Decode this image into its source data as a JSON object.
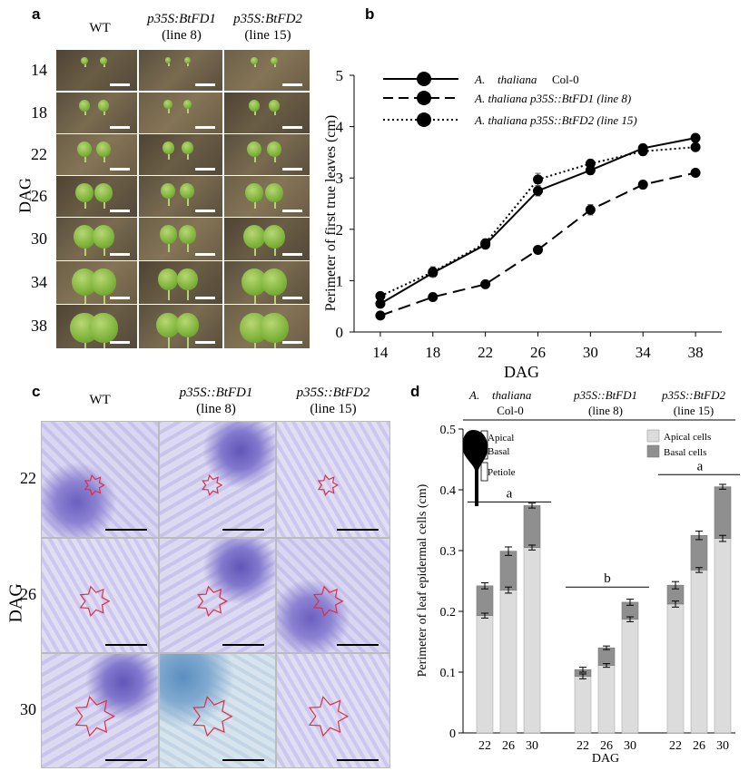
{
  "panel_a": {
    "letter": "a",
    "columns": [
      "WT",
      "p35S:BtFD1",
      "(line 8)",
      "p35S:BtFD2",
      "(line 15)"
    ],
    "col_wt": "WT",
    "col_fd1": "p35S:BtFD1",
    "col_fd1_line": "(line 8)",
    "col_fd2": "p35S:BtFD2",
    "col_fd2_line": "(line 15)",
    "row_label": "DAG",
    "rows": [
      "14",
      "18",
      "22",
      "26",
      "30",
      "34",
      "38"
    ]
  },
  "panel_b": {
    "letter": "b",
    "legend_1_a": "A.",
    "legend_1_b": "thaliana",
    "legend_1_c": "Col-0",
    "legend_2": "A. thaliana p35S::BtFD1 (line 8)",
    "legend_3": "A. thaliana p35S::BtFD2 (line 15)",
    "ylabel": "Perimeter of first true leaves (cm)",
    "xlabel": "DAG"
  },
  "panel_c": {
    "letter": "c",
    "col_wt": "WT",
    "col_fd1": "p35S::BtFD1",
    "col_fd1_line": "(line 8)",
    "col_fd2": "p35S::BtFD2",
    "col_fd2_line": "(line 15)",
    "row_label": "DAG",
    "rows": [
      "22",
      "26",
      "30"
    ]
  },
  "panel_d": {
    "letter": "d",
    "group1_a": "A.",
    "group1_b": "thaliana",
    "group1_c": "Col-0",
    "group2": "p35S::BtFD1",
    "group2_line": "(line 8)",
    "group3": "p35S::BtFD2",
    "group3_line": "(line 15)",
    "inset_apical": "Apical",
    "inset_basal": "Basal",
    "inset_petiole": "Petiole",
    "legend_apical": "Apical cells",
    "legend_basal": "Basal cells",
    "ylabel": "Perimeter of leaf epidermal cells (cm)",
    "xlabel": "DAG",
    "sig": [
      "a",
      "b",
      "a"
    ]
  },
  "chart_data": [
    {
      "type": "line",
      "panel": "b",
      "xlabel": "DAG",
      "ylabel": "Perimeter of first true leaves (cm)",
      "x": [
        14,
        18,
        22,
        26,
        30,
        34,
        38
      ],
      "xticks": [
        14,
        18,
        22,
        26,
        30,
        34,
        38
      ],
      "ylim": [
        0,
        5
      ],
      "yticks": [
        0,
        1,
        2,
        3,
        4,
        5
      ],
      "series": [
        {
          "name": "A. thaliana Col-0",
          "style": "solid",
          "values": [
            0.55,
            1.15,
            1.7,
            2.75,
            3.15,
            3.58,
            3.78
          ],
          "err": [
            0.04,
            0.05,
            0.05,
            0.1,
            0.08,
            0.07,
            0.05
          ]
        },
        {
          "name": "A. thaliana p35S::BtFD1 (line 8)",
          "style": "dashed",
          "values": [
            0.32,
            0.68,
            0.93,
            1.6,
            2.38,
            2.87,
            3.1
          ],
          "err": [
            0.03,
            0.04,
            0.04,
            0.05,
            0.1,
            0.07,
            0.05
          ]
        },
        {
          "name": "A. thaliana p35S::BtFD2 (line 15)",
          "style": "dotted",
          "values": [
            0.7,
            1.17,
            1.73,
            2.97,
            3.28,
            3.52,
            3.6
          ],
          "err": [
            0.04,
            0.1,
            0.05,
            0.12,
            0.07,
            0.08,
            0.06
          ]
        }
      ],
      "color": "#000000"
    },
    {
      "type": "bar",
      "panel": "d",
      "stacked": true,
      "xlabel": "DAG",
      "ylabel": "Perimeter of leaf epidermal cells (cm)",
      "ylim": [
        0,
        0.5
      ],
      "yticks": [
        0,
        0.1,
        0.2,
        0.3,
        0.4,
        0.5
      ],
      "categories": [
        "22",
        "26",
        "30"
      ],
      "groups": [
        {
          "name": "A. thaliana Col-0",
          "apical": [
            0.193,
            0.235,
            0.305
          ],
          "total": [
            0.242,
            0.299,
            0.374
          ],
          "apical_err": [
            0.004,
            0.005,
            0.004
          ],
          "total_err": [
            0.005,
            0.007,
            0.004
          ]
        },
        {
          "name": "p35S::BtFD1 (line 8)",
          "apical": [
            0.093,
            0.111,
            0.187
          ],
          "total": [
            0.104,
            0.14,
            0.215
          ],
          "apical_err": [
            0.004,
            0.003,
            0.004
          ],
          "total_err": [
            0.004,
            0.003,
            0.005
          ]
        },
        {
          "name": "p35S::BtFD2 (line 15)",
          "apical": [
            0.212,
            0.268,
            0.32
          ],
          "total": [
            0.243,
            0.325,
            0.405
          ],
          "apical_err": [
            0.005,
            0.004,
            0.005
          ],
          "total_err": [
            0.006,
            0.007,
            0.004
          ]
        }
      ],
      "series": [
        {
          "name": "Apical cells",
          "color": "#dcdcdc"
        },
        {
          "name": "Basal cells",
          "color": "#8f8f8f"
        }
      ]
    }
  ]
}
